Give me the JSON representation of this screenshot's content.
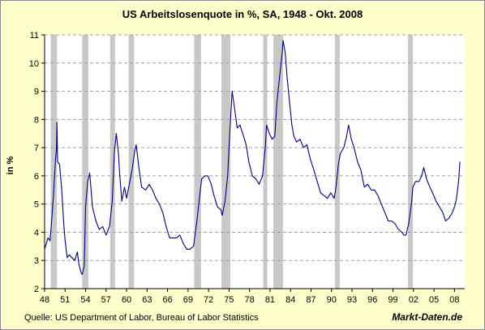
{
  "chart_data": {
    "type": "line",
    "title": "US Arbeitslosenquote in %, SA, 1948 - Okt. 2008",
    "xlabel": "",
    "ylabel": "in %",
    "source": "Quelle: US Department of Labor, Bureau of Labor Statistics",
    "brand": "Markt-Daten.de",
    "xlim": [
      1948,
      2009.5
    ],
    "ylim": [
      2,
      11
    ],
    "y_ticks": [
      "2",
      "3",
      "4",
      "5",
      "6",
      "7",
      "8",
      "9",
      "10",
      "11"
    ],
    "x_ticks": [
      "48",
      "51",
      "54",
      "57",
      "60",
      "63",
      "66",
      "69",
      "72",
      "75",
      "78",
      "81",
      "84",
      "87",
      "90",
      "93",
      "96",
      "99",
      "02",
      "05",
      "08"
    ],
    "grid": "horizontal dashed",
    "colors": {
      "line": "#000080",
      "recession": "#c8c8c8",
      "background": "#ffffcc"
    },
    "recessions": [
      [
        1948.9,
        1949.8
      ],
      [
        1953.5,
        1954.4
      ],
      [
        1957.6,
        1958.3
      ],
      [
        1960.3,
        1961.1
      ],
      [
        1969.9,
        1970.9
      ],
      [
        1973.9,
        1975.2
      ],
      [
        1980.0,
        1980.6
      ],
      [
        1981.5,
        1982.9
      ],
      [
        1990.5,
        1991.2
      ],
      [
        2001.2,
        2001.9
      ]
    ],
    "series": [
      {
        "points": [
          [
            1948.0,
            3.4
          ],
          [
            1948.5,
            3.8
          ],
          [
            1948.8,
            3.7
          ],
          [
            1949.0,
            4.3
          ],
          [
            1949.3,
            5.3
          ],
          [
            1949.6,
            6.6
          ],
          [
            1949.75,
            7.0
          ],
          [
            1949.8,
            7.9
          ],
          [
            1949.9,
            6.5
          ],
          [
            1950.2,
            6.4
          ],
          [
            1950.5,
            5.5
          ],
          [
            1950.8,
            4.3
          ],
          [
            1951.0,
            3.7
          ],
          [
            1951.3,
            3.1
          ],
          [
            1951.6,
            3.2
          ],
          [
            1952.0,
            3.1
          ],
          [
            1952.4,
            3.0
          ],
          [
            1952.8,
            3.3
          ],
          [
            1953.0,
            2.9
          ],
          [
            1953.3,
            2.6
          ],
          [
            1953.5,
            2.5
          ],
          [
            1953.8,
            2.8
          ],
          [
            1954.0,
            4.9
          ],
          [
            1954.3,
            5.8
          ],
          [
            1954.6,
            6.1
          ],
          [
            1954.8,
            5.5
          ],
          [
            1955.0,
            4.9
          ],
          [
            1955.5,
            4.4
          ],
          [
            1956.0,
            4.1
          ],
          [
            1956.5,
            4.2
          ],
          [
            1957.0,
            3.9
          ],
          [
            1957.5,
            4.2
          ],
          [
            1957.9,
            5.1
          ],
          [
            1958.2,
            6.8
          ],
          [
            1958.5,
            7.5
          ],
          [
            1958.8,
            6.8
          ],
          [
            1959.0,
            6.0
          ],
          [
            1959.3,
            5.1
          ],
          [
            1959.7,
            5.6
          ],
          [
            1960.0,
            5.2
          ],
          [
            1960.4,
            5.7
          ],
          [
            1960.8,
            6.2
          ],
          [
            1961.2,
            6.9
          ],
          [
            1961.4,
            7.1
          ],
          [
            1961.8,
            6.3
          ],
          [
            1962.2,
            5.6
          ],
          [
            1962.8,
            5.5
          ],
          [
            1963.3,
            5.7
          ],
          [
            1963.8,
            5.5
          ],
          [
            1964.3,
            5.2
          ],
          [
            1964.8,
            5.0
          ],
          [
            1965.3,
            4.7
          ],
          [
            1965.8,
            4.2
          ],
          [
            1966.3,
            3.8
          ],
          [
            1966.8,
            3.8
          ],
          [
            1967.3,
            3.8
          ],
          [
            1967.8,
            3.9
          ],
          [
            1968.3,
            3.6
          ],
          [
            1968.8,
            3.4
          ],
          [
            1969.3,
            3.4
          ],
          [
            1969.8,
            3.5
          ],
          [
            1970.3,
            4.4
          ],
          [
            1970.8,
            5.5
          ],
          [
            1971.0,
            5.9
          ],
          [
            1971.5,
            6.0
          ],
          [
            1971.9,
            6.0
          ],
          [
            1972.4,
            5.7
          ],
          [
            1972.8,
            5.3
          ],
          [
            1973.3,
            4.9
          ],
          [
            1973.8,
            4.8
          ],
          [
            1974.0,
            4.6
          ],
          [
            1974.4,
            5.1
          ],
          [
            1974.8,
            6.0
          ],
          [
            1975.1,
            7.5
          ],
          [
            1975.35,
            8.6
          ],
          [
            1975.45,
            9.0
          ],
          [
            1975.8,
            8.4
          ],
          [
            1976.2,
            7.7
          ],
          [
            1976.6,
            7.8
          ],
          [
            1977.0,
            7.5
          ],
          [
            1977.5,
            7.1
          ],
          [
            1977.9,
            6.5
          ],
          [
            1978.4,
            6.0
          ],
          [
            1978.9,
            5.9
          ],
          [
            1979.4,
            5.7
          ],
          [
            1979.9,
            6.0
          ],
          [
            1980.3,
            7.0
          ],
          [
            1980.5,
            7.8
          ],
          [
            1980.9,
            7.5
          ],
          [
            1981.3,
            7.3
          ],
          [
            1981.7,
            7.4
          ],
          [
            1982.0,
            8.6
          ],
          [
            1982.4,
            9.5
          ],
          [
            1982.8,
            10.4
          ],
          [
            1982.9,
            10.8
          ],
          [
            1983.2,
            10.4
          ],
          [
            1983.5,
            9.5
          ],
          [
            1983.9,
            8.5
          ],
          [
            1984.2,
            7.8
          ],
          [
            1984.5,
            7.4
          ],
          [
            1984.9,
            7.2
          ],
          [
            1985.4,
            7.3
          ],
          [
            1985.9,
            7.0
          ],
          [
            1986.4,
            7.1
          ],
          [
            1986.9,
            6.6
          ],
          [
            1987.3,
            6.3
          ],
          [
            1987.9,
            5.8
          ],
          [
            1988.4,
            5.4
          ],
          [
            1988.9,
            5.3
          ],
          [
            1989.4,
            5.2
          ],
          [
            1989.9,
            5.4
          ],
          [
            1990.4,
            5.2
          ],
          [
            1990.7,
            5.7
          ],
          [
            1991.0,
            6.4
          ],
          [
            1991.3,
            6.8
          ],
          [
            1991.8,
            7.0
          ],
          [
            1992.2,
            7.4
          ],
          [
            1992.5,
            7.8
          ],
          [
            1992.9,
            7.3
          ],
          [
            1993.3,
            7.0
          ],
          [
            1993.8,
            6.5
          ],
          [
            1994.3,
            6.2
          ],
          [
            1994.8,
            5.6
          ],
          [
            1995.3,
            5.7
          ],
          [
            1995.8,
            5.5
          ],
          [
            1996.3,
            5.5
          ],
          [
            1996.8,
            5.3
          ],
          [
            1997.3,
            5.0
          ],
          [
            1997.8,
            4.7
          ],
          [
            1998.3,
            4.4
          ],
          [
            1998.8,
            4.4
          ],
          [
            1999.3,
            4.3
          ],
          [
            1999.8,
            4.1
          ],
          [
            2000.3,
            4.0
          ],
          [
            2000.6,
            3.9
          ],
          [
            2000.9,
            3.9
          ],
          [
            2001.3,
            4.3
          ],
          [
            2001.7,
            5.0
          ],
          [
            2001.9,
            5.6
          ],
          [
            2002.3,
            5.8
          ],
          [
            2002.8,
            5.8
          ],
          [
            2003.2,
            6.0
          ],
          [
            2003.5,
            6.3
          ],
          [
            2003.9,
            5.9
          ],
          [
            2004.4,
            5.6
          ],
          [
            2004.8,
            5.4
          ],
          [
            2005.3,
            5.1
          ],
          [
            2005.8,
            4.9
          ],
          [
            2006.3,
            4.7
          ],
          [
            2006.7,
            4.4
          ],
          [
            2007.2,
            4.5
          ],
          [
            2007.7,
            4.7
          ],
          [
            2008.0,
            4.9
          ],
          [
            2008.3,
            5.2
          ],
          [
            2008.6,
            5.8
          ],
          [
            2008.8,
            6.5
          ]
        ]
      }
    ]
  }
}
